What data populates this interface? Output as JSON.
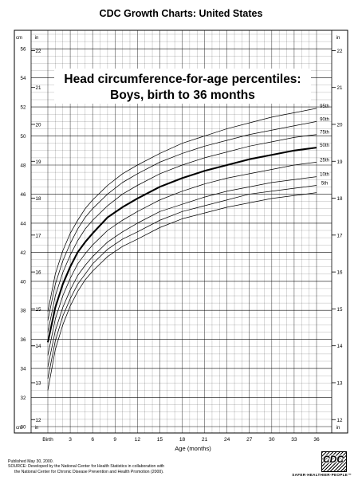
{
  "header": {
    "title": "CDC Growth Charts: United States"
  },
  "chart_data": {
    "type": "line",
    "title": "Head circumference-for-age percentiles:",
    "subtitle": "Boys, birth to 36 months",
    "xlabel": "Age (months)",
    "x_ticks": [
      "Birth",
      "3",
      "6",
      "9",
      "12",
      "15",
      "18",
      "21",
      "24",
      "27",
      "30",
      "33",
      "36"
    ],
    "xlim": [
      0,
      36
    ],
    "ylim_cm": [
      30,
      57
    ],
    "left_unit_top": "cm",
    "left_unit_bottom": "cm",
    "in_unit_top": "in",
    "in_unit_bottom": "in",
    "y_ticks_cm": [
      "56",
      "54",
      "52",
      "50",
      "48",
      "46",
      "44",
      "42",
      "40",
      "38",
      "36",
      "34",
      "32",
      "30"
    ],
    "y_ticks_in": [
      "22",
      "21",
      "20",
      "19",
      "18",
      "17",
      "16",
      "15",
      "14",
      "13",
      "12"
    ],
    "grid": true,
    "x": [
      0,
      1,
      2,
      3,
      4,
      5,
      6,
      8,
      10,
      12,
      15,
      18,
      21,
      24,
      27,
      30,
      33,
      36
    ],
    "series": [
      {
        "name": "95th",
        "bold": false,
        "values": [
          37.9,
          40.5,
          42.1,
          43.3,
          44.2,
          45.0,
          45.6,
          46.6,
          47.4,
          48.0,
          48.8,
          49.5,
          50.0,
          50.5,
          50.9,
          51.3,
          51.6,
          51.9
        ]
      },
      {
        "name": "90th",
        "bold": false,
        "values": [
          37.3,
          39.8,
          41.4,
          42.6,
          43.6,
          44.4,
          45.0,
          46.0,
          46.8,
          47.4,
          48.2,
          48.8,
          49.3,
          49.7,
          50.1,
          50.4,
          50.7,
          51.0
        ]
      },
      {
        "name": "75th",
        "bold": false,
        "values": [
          36.5,
          39.0,
          40.6,
          41.8,
          42.8,
          43.6,
          44.2,
          45.2,
          46.0,
          46.6,
          47.4,
          48.0,
          48.5,
          48.9,
          49.3,
          49.6,
          49.9,
          50.1
        ]
      },
      {
        "name": "50th",
        "bold": true,
        "values": [
          35.8,
          38.2,
          39.8,
          41.0,
          42.0,
          42.7,
          43.3,
          44.4,
          45.1,
          45.7,
          46.5,
          47.1,
          47.6,
          48.0,
          48.4,
          48.7,
          49.0,
          49.2
        ]
      },
      {
        "name": "25th",
        "bold": false,
        "values": [
          34.9,
          37.4,
          39.0,
          40.2,
          41.2,
          41.9,
          42.5,
          43.5,
          44.2,
          44.8,
          45.6,
          46.2,
          46.7,
          47.1,
          47.4,
          47.7,
          48.0,
          48.2
        ]
      },
      {
        "name": "10th",
        "bold": false,
        "values": [
          34.1,
          36.6,
          38.2,
          39.4,
          40.4,
          41.1,
          41.7,
          42.7,
          43.4,
          44.0,
          44.8,
          45.3,
          45.8,
          46.2,
          46.5,
          46.8,
          47.0,
          47.2
        ]
      },
      {
        "name": "5th",
        "bold": false,
        "values": [
          33.3,
          35.9,
          37.6,
          38.8,
          39.8,
          40.5,
          41.2,
          42.2,
          42.9,
          43.4,
          44.2,
          44.8,
          45.2,
          45.6,
          46.0,
          46.2,
          46.4,
          46.6
        ]
      },
      {
        "name": "",
        "bold": false,
        "values": [
          32.5,
          35.3,
          37.0,
          38.3,
          39.3,
          40.1,
          40.7,
          41.7,
          42.4,
          42.9,
          43.7,
          44.3,
          44.7,
          45.1,
          45.4,
          45.7,
          45.9,
          46.1
        ]
      }
    ]
  },
  "footer": {
    "published": "Published May 30, 2000.",
    "source_1": "SOURCE: Developed by the National Center for Health Statistics in collaboration with",
    "source_2": "the National Center for Chronic Disease Prevention and Health Promotion (2000)."
  },
  "logo": {
    "text": "CDC",
    "tagline": "SAFER·HEALTHIER·PEOPLE™"
  }
}
